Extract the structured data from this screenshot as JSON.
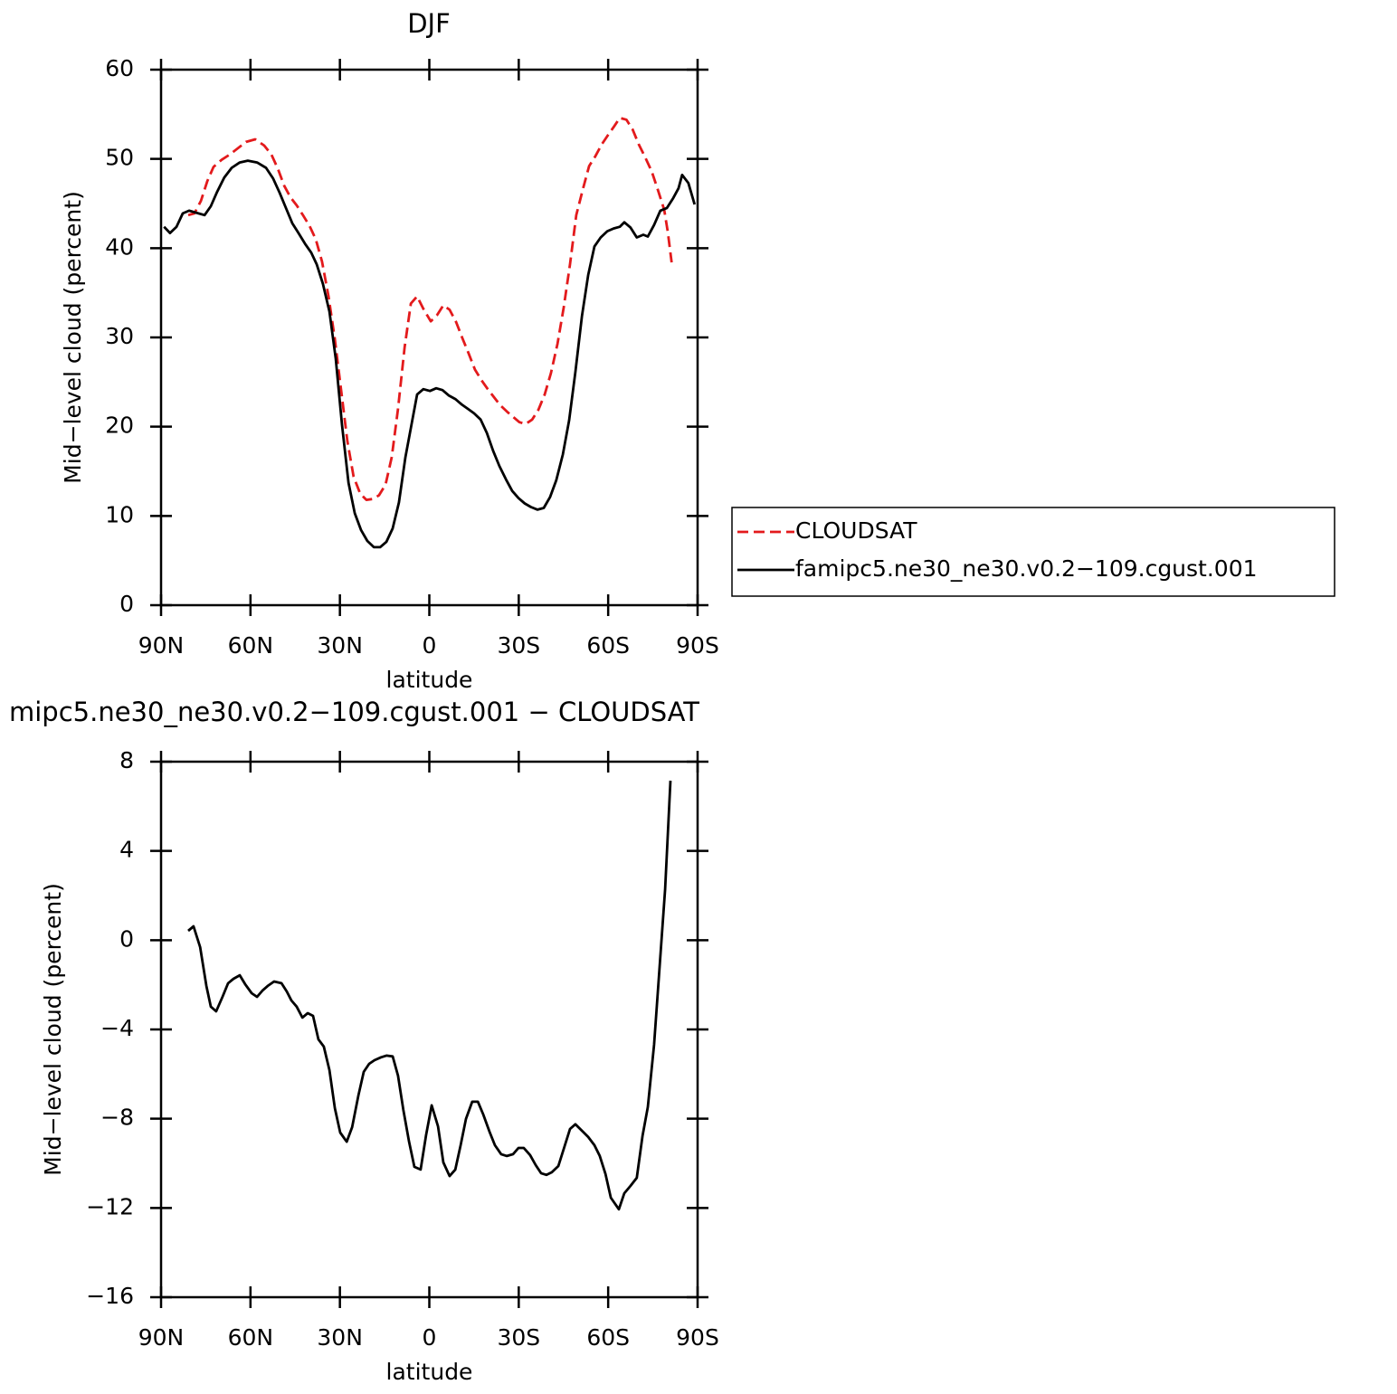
{
  "chart_data": [
    {
      "type": "line",
      "title": "DJF",
      "xlabel": "latitude",
      "ylabel": "Mid−level cloud (percent)",
      "xlim": [
        90,
        -90
      ],
      "ylim": [
        0,
        60
      ],
      "xticks": [
        {
          "value": 90,
          "label": "90N"
        },
        {
          "value": 60,
          "label": "60N"
        },
        {
          "value": 30,
          "label": "30N"
        },
        0,
        {
          "value": -30,
          "label": "30S"
        },
        {
          "value": -60,
          "label": "60S"
        },
        {
          "value": -90,
          "label": "90S"
        }
      ],
      "yticks": [
        0,
        10,
        20,
        30,
        40,
        50,
        60
      ],
      "legend": "right",
      "series": [
        {
          "name": "CLOUDSAT",
          "color": "#e31a1c",
          "dash": true,
          "x": [
            80.9,
            78.8,
            76.6,
            74.5,
            72.4,
            69.7,
            66.9,
            64.2,
            61.5,
            58.4,
            55.4,
            53,
            50.8,
            48.7,
            46.6,
            44.5,
            42.4,
            40.2,
            38.1,
            36,
            33.8,
            31.7,
            29.6,
            27.5,
            25.4,
            23.2,
            21.1,
            19,
            16.9,
            14.7,
            12.6,
            10.5,
            8.3,
            6.2,
            4.1,
            2,
            -0.5,
            -2.6,
            -4.7,
            -6.8,
            -9,
            -11.1,
            -13.2,
            -15.3,
            -17.5,
            -19.6,
            -21.7,
            -23.8,
            -26,
            -28.1,
            -30.2,
            -32.3,
            -34.5,
            -36.6,
            -38.7,
            -40.8,
            -43,
            -45.1,
            -47.2,
            -49.3,
            -51.5,
            -53.6,
            -55.7,
            -57.8,
            -60,
            -62.1,
            -63.9,
            -66.1,
            -68.2,
            -70.3,
            -72.4,
            -74.6,
            -76.7,
            -78.8,
            -80,
            -81.3
          ],
          "values": [
            43.7,
            43.9,
            45.3,
            47.5,
            49.1,
            49.9,
            50.5,
            51.2,
            51.9,
            52.2,
            51.5,
            50.5,
            48.9,
            47.0,
            45.7,
            44.8,
            43.7,
            42.5,
            41.0,
            38.5,
            34.6,
            29.8,
            24.1,
            18.4,
            14.4,
            12.5,
            11.8,
            11.9,
            12.3,
            13.5,
            16.6,
            22.0,
            28.9,
            33.8,
            34.6,
            33.2,
            31.8,
            32.5,
            33.6,
            33.1,
            31.7,
            29.9,
            28.2,
            26.4,
            25.2,
            24.2,
            23.3,
            22.4,
            21.7,
            21.1,
            20.5,
            20.3,
            20.8,
            21.9,
            23.6,
            26.0,
            29.3,
            33.4,
            38.2,
            43.7,
            46.6,
            49.2,
            50.3,
            51.6,
            52.7,
            53.7,
            54.6,
            54.4,
            53.3,
            51.6,
            50.2,
            48.6,
            46.5,
            44.3,
            41.8,
            38.4
          ]
        },
        {
          "name": "famipc5.ne30_ne30.v0.2−109.cgust.001",
          "color": "#000000",
          "dash": false,
          "x": [
            89,
            87,
            84.8,
            82.7,
            80.6,
            78.5,
            75.4,
            73.3,
            71.2,
            68.8,
            66.3,
            63.6,
            60.9,
            57.8,
            54.8,
            52.4,
            50.2,
            48.1,
            46,
            43.9,
            41.7,
            39.6,
            37.8,
            35.7,
            33.5,
            31.4,
            29.3,
            27.1,
            25,
            22.9,
            20.8,
            18.6,
            16.5,
            14.4,
            12.3,
            10.2,
            8,
            5.9,
            4.1,
            2,
            -0.2,
            -2.3,
            -4.4,
            -6.5,
            -8.7,
            -10.8,
            -12.9,
            -15,
            -17.2,
            -19.3,
            -21.4,
            -23.5,
            -25.7,
            -27.8,
            -29.9,
            -32,
            -34.1,
            -36.3,
            -38.4,
            -40.5,
            -42.6,
            -44.8,
            -46.9,
            -49,
            -51.2,
            -53.3,
            -55.4,
            -57.5,
            -59.7,
            -61.8,
            -63.9,
            -65.4,
            -67.5,
            -69.6,
            -71.8,
            -73.3,
            -75.4,
            -77.5,
            -79.7,
            -81.8,
            -83.6,
            -84.8,
            -86.9,
            -89
          ],
          "values": [
            42.4,
            41.7,
            42.4,
            43.9,
            44.2,
            44.0,
            43.7,
            44.7,
            46.3,
            47.9,
            49.0,
            49.6,
            49.8,
            49.6,
            49.0,
            47.8,
            46.2,
            44.5,
            42.8,
            41.7,
            40.5,
            39.5,
            38.2,
            36.0,
            32.9,
            27.6,
            20.2,
            13.7,
            10.3,
            8.4,
            7.2,
            6.5,
            6.5,
            7.1,
            8.6,
            11.5,
            16.6,
            20.4,
            23.6,
            24.2,
            24.0,
            24.3,
            24.1,
            23.5,
            23.1,
            22.5,
            22.0,
            21.5,
            20.8,
            19.3,
            17.3,
            15.6,
            14.1,
            12.8,
            12.0,
            11.4,
            11.0,
            10.7,
            10.9,
            12.1,
            14.0,
            16.9,
            20.7,
            26.1,
            32.4,
            37.0,
            40.2,
            41.2,
            41.9,
            42.2,
            42.4,
            42.9,
            42.3,
            41.2,
            41.5,
            41.3,
            42.6,
            44.2,
            44.5,
            45.6,
            46.7,
            48.2,
            47.3,
            44.9
          ]
        }
      ]
    },
    {
      "type": "line",
      "title": "mipc5.ne30_ne30.v0.2−109.cgust.001  −  CLOUDSAT",
      "xlabel": "latitude",
      "ylabel": "Mid−level cloud (percent)",
      "xlim": [
        90,
        -90
      ],
      "ylim": [
        -16,
        8
      ],
      "xticks": [
        {
          "value": 90,
          "label": "90N"
        },
        {
          "value": 60,
          "label": "60N"
        },
        {
          "value": 30,
          "label": "30N"
        },
        0,
        {
          "value": -30,
          "label": "30S"
        },
        {
          "value": -60,
          "label": "60S"
        },
        {
          "value": -90,
          "label": "90S"
        }
      ],
      "yticks": [
        {
          "value": -16,
          "label": "−16"
        },
        {
          "value": -12,
          "label": "−12"
        },
        {
          "value": -8,
          "label": "−8"
        },
        {
          "value": -4,
          "label": "−4"
        },
        0,
        4,
        8
      ],
      "color": "#000000",
      "x": [
        80.9,
        79.1,
        76.9,
        74.8,
        73.3,
        71.5,
        69.4,
        67.5,
        65.7,
        63.6,
        61.8,
        59.6,
        57.8,
        56,
        54.2,
        52.1,
        49.6,
        47.8,
        46.3,
        44.5,
        42.6,
        40.8,
        39,
        37.2,
        35.4,
        33.5,
        31.7,
        29.9,
        27.7,
        25.9,
        23.8,
        22,
        20.2,
        18.4,
        16.2,
        14.4,
        12.3,
        10.5,
        8.7,
        6.8,
        5,
        2.9,
        1.1,
        -0.8,
        -2.9,
        -4.7,
        -6.8,
        -8.7,
        -10.5,
        -12.3,
        -14.4,
        -16.3,
        -18.1,
        -20.2,
        -22,
        -24.1,
        -26,
        -28.1,
        -29.9,
        -31.7,
        -33.8,
        -35.7,
        -37.5,
        -39.3,
        -41.1,
        -43.3,
        -45.1,
        -47.2,
        -49,
        -51.2,
        -53.3,
        -55.4,
        -57.2,
        -59.1,
        -60.9,
        -63.6,
        -65.4,
        -67.5,
        -69.6,
        -71.5,
        -73.3,
        -75.4,
        -77.2,
        -79.1,
        -80.9
      ],
      "values": [
        0.42,
        0.62,
        -0.31,
        -2.05,
        -2.98,
        -3.19,
        -2.54,
        -1.93,
        -1.73,
        -1.57,
        -1.97,
        -2.38,
        -2.54,
        -2.26,
        -2.05,
        -1.85,
        -1.93,
        -2.3,
        -2.7,
        -2.98,
        -3.47,
        -3.27,
        -3.39,
        -4.44,
        -4.77,
        -5.82,
        -7.53,
        -8.62,
        -9.03,
        -8.38,
        -6.96,
        -5.9,
        -5.54,
        -5.38,
        -5.25,
        -5.17,
        -5.21,
        -6.07,
        -7.61,
        -9.03,
        -10.16,
        -10.28,
        -8.74,
        -7.4,
        -8.34,
        -9.96,
        -10.57,
        -10.28,
        -9.19,
        -8.01,
        -7.24,
        -7.24,
        -7.81,
        -8.58,
        -9.19,
        -9.59,
        -9.67,
        -9.59,
        -9.31,
        -9.31,
        -9.63,
        -10.08,
        -10.44,
        -10.52,
        -10.4,
        -10.12,
        -9.35,
        -8.46,
        -8.25,
        -8.54,
        -8.82,
        -9.19,
        -9.67,
        -10.48,
        -11.54,
        -12.06,
        -11.34,
        -11.01,
        -10.65,
        -8.78,
        -7.48,
        -4.69,
        -1.32,
        2.28,
        7.15
      ]
    }
  ]
}
